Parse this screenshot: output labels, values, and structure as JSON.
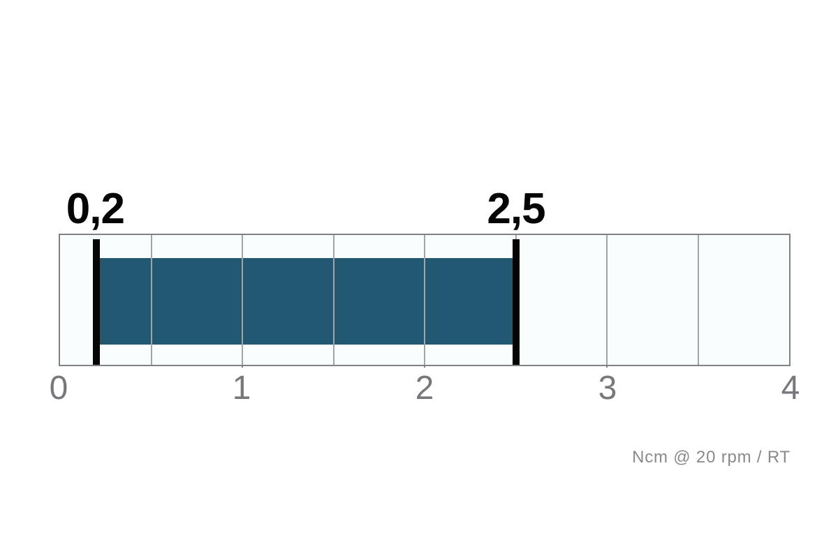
{
  "chart_data": {
    "type": "bar",
    "subtype": "horizontal-range-bar",
    "title": "",
    "unit_label": "Ncm @ 20 rpm / RT",
    "axis": {
      "min": 0,
      "max": 4,
      "tick_labels": [
        "0",
        "1",
        "2",
        "3",
        "4"
      ],
      "tick_step": 1,
      "grid_step": 0.5,
      "grid_on": true
    },
    "range": {
      "start": 0.2,
      "end": 2.5,
      "start_label": "0,2",
      "end_label": "2,5"
    },
    "colors": {
      "bar": "#235873",
      "marker": "#050505",
      "value_label": "#050505",
      "tick_label": "#77787b",
      "unit_label": "#8a8a8d",
      "gridline": "#a3a4a6",
      "plot_border": "#7f8183",
      "plot_background": "#fafdfd",
      "page_background": "#ffffff"
    }
  }
}
